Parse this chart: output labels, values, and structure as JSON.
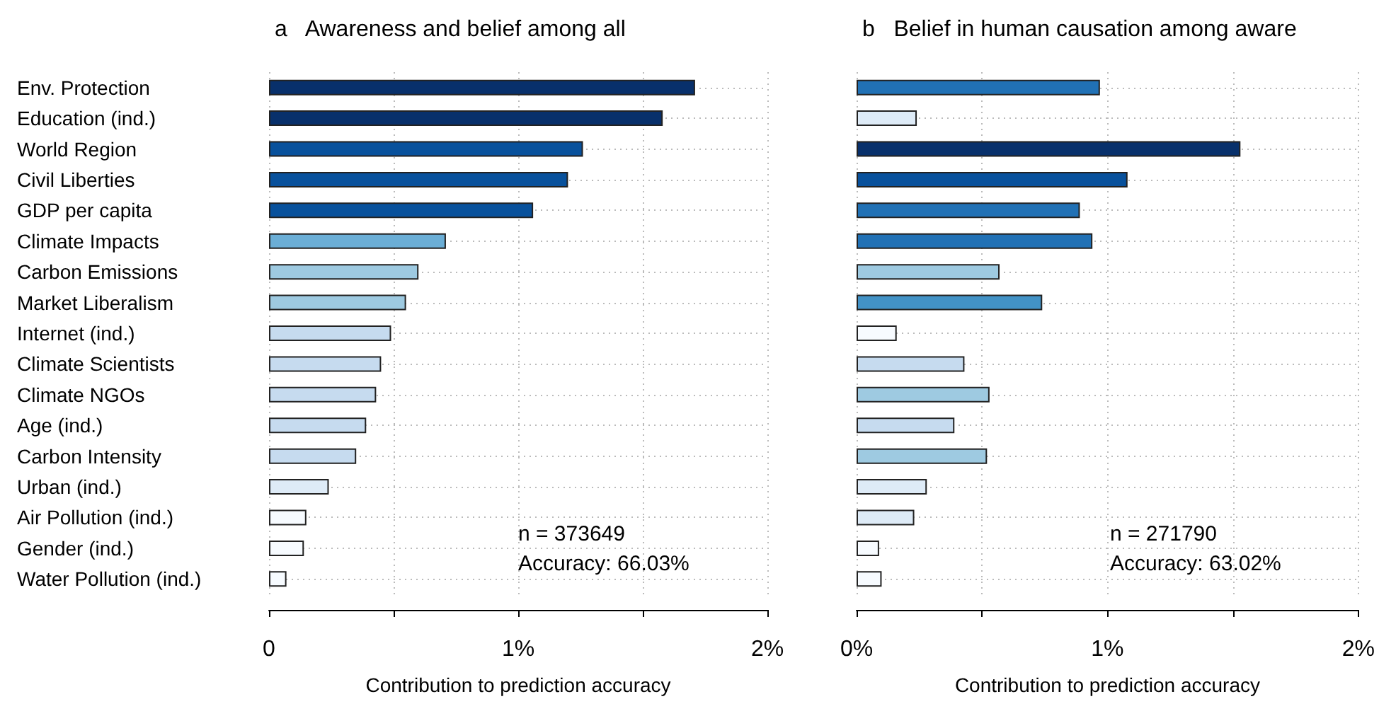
{
  "chart_data": [
    {
      "type": "bar",
      "orientation": "horizontal",
      "title": "a   Awareness and belief among all",
      "xlabel": "Contribution to prediction accuracy",
      "categories": [
        "Env. Protection",
        "Education (ind.)",
        "World Region",
        "Civil Liberties",
        "GDP per capita",
        "Climate Impacts",
        "Carbon Emissions",
        "Market Liberalism",
        "Internet (ind.)",
        "Climate Scientists",
        "Climate NGOs",
        "Age (ind.)",
        "Carbon Intensity",
        "Urban (ind.)",
        "Air Pollution (ind.)",
        "Gender (ind.)",
        "Water Pollution (ind.)"
      ],
      "values": [
        1.71,
        1.58,
        1.26,
        1.2,
        1.06,
        0.71,
        0.6,
        0.55,
        0.49,
        0.45,
        0.43,
        0.39,
        0.35,
        0.24,
        0.15,
        0.14,
        0.07
      ],
      "colors": [
        "#08306b",
        "#08306b",
        "#08519c",
        "#08519c",
        "#08519c",
        "#6baed6",
        "#9ecae1",
        "#9ecae1",
        "#c6dbef",
        "#c6dbef",
        "#c6dbef",
        "#c6dbef",
        "#c6dbef",
        "#deebf7",
        "#f7fbff",
        "#f7fbff",
        "#f7fbff"
      ],
      "xlim": [
        0,
        2
      ],
      "xticks": [
        {
          "value": 0,
          "label": "0"
        },
        {
          "value": 0.5,
          "label": null
        },
        {
          "value": 1,
          "label": "1%"
        },
        {
          "value": 1.5,
          "label": null
        },
        {
          "value": 2,
          "label": "2%"
        }
      ],
      "grid": true,
      "annotations": [
        "n = 373649",
        "Accuracy: 66.03%"
      ]
    },
    {
      "type": "bar",
      "orientation": "horizontal",
      "title": "b   Belief in human causation among aware",
      "xlabel": "Contribution to prediction accuracy",
      "categories": [
        null,
        null,
        null,
        null,
        null,
        null,
        null,
        null,
        null,
        null,
        null,
        null,
        null,
        null,
        null,
        null,
        null
      ],
      "values": [
        0.97,
        0.24,
        1.53,
        1.08,
        0.89,
        0.94,
        0.57,
        0.74,
        0.16,
        0.43,
        0.53,
        0.39,
        0.52,
        0.28,
        0.23,
        0.09,
        0.1
      ],
      "colors": [
        "#2171b5",
        "#deebf7",
        "#08306b",
        "#08519c",
        "#2171b5",
        "#2171b5",
        "#9ecae1",
        "#4292c6",
        "#f7fbff",
        "#c6dbef",
        "#9ecae1",
        "#c6dbef",
        "#9ecae1",
        "#deebf7",
        "#deebf7",
        "#f7fbff",
        "#f7fbff"
      ],
      "xlim": [
        0,
        2
      ],
      "xticks": [
        {
          "value": 0,
          "label": "0%"
        },
        {
          "value": 0.5,
          "label": null
        },
        {
          "value": 1,
          "label": "1%"
        },
        {
          "value": 1.5,
          "label": null
        },
        {
          "value": 2,
          "label": "2%"
        }
      ],
      "grid": true,
      "tick_labels": "x",
      "annotations": [
        "n = 271790",
        "Accuracy: 63.02%"
      ]
    }
  ]
}
